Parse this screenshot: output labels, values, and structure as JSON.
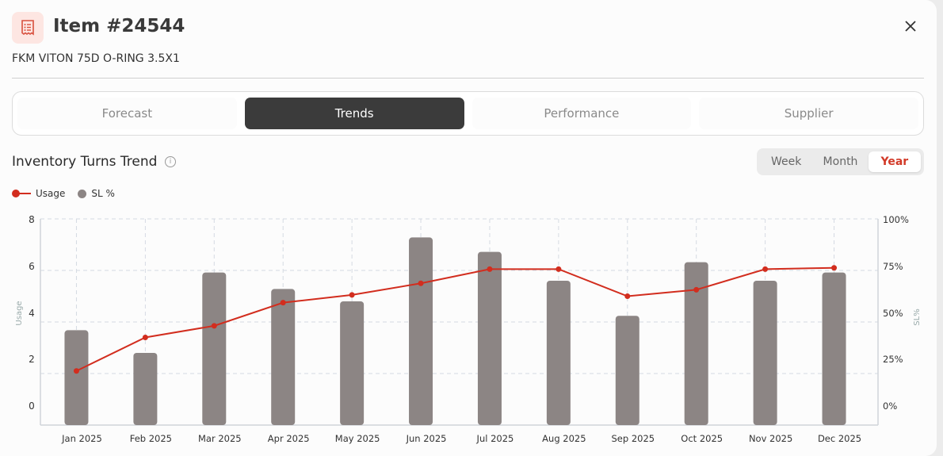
{
  "header": {
    "title": "Item #24544",
    "subtitle": "FKM VITON 75D O-RING 3.5X1"
  },
  "tabs": [
    {
      "label": "Forecast"
    },
    {
      "label": "Trends",
      "active": true
    },
    {
      "label": "Performance"
    },
    {
      "label": "Supplier"
    }
  ],
  "section": {
    "title": "Inventory Turns Trend",
    "info_icon": "i"
  },
  "range_toggle": [
    {
      "label": "Week"
    },
    {
      "label": "Month"
    },
    {
      "label": "Year",
      "active": true
    }
  ],
  "legend": [
    {
      "label": "Usage"
    },
    {
      "label": "SL %"
    }
  ],
  "colors": {
    "accent": "#d22d1e",
    "bar": "#8c8584",
    "active_tab": "#3b3b3b"
  },
  "chart_data": {
    "type": "bar+line",
    "categories": [
      "Jan 2025",
      "Feb 2025",
      "Mar 2025",
      "Apr 2025",
      "May 2025",
      "Jun 2025",
      "Jul 2025",
      "Aug 2025",
      "Sep 2025",
      "Oct 2025",
      "Nov 2025",
      "Dec 2025"
    ],
    "series": [
      {
        "name": "Usage",
        "type": "line",
        "axis": "left",
        "values": [
          2.1,
          3.4,
          3.85,
          4.75,
          5.05,
          5.5,
          6.05,
          6.05,
          5.0,
          5.25,
          6.05,
          6.1
        ]
      },
      {
        "name": "SL %",
        "type": "bar",
        "axis": "right",
        "values": [
          46,
          35,
          74,
          66,
          60,
          91,
          84,
          70,
          53,
          79,
          70,
          74
        ]
      }
    ],
    "ylabel": "Usage",
    "y2label": "SL%",
    "yticks": [
      "0",
      "2",
      "4",
      "6",
      "8"
    ],
    "y2ticks": [
      "0%",
      "25%",
      "50%",
      "75%",
      "100%"
    ],
    "ylim": [
      0,
      8
    ],
    "y2lim": [
      0,
      100
    ],
    "grid": true,
    "legend_position": "top-left"
  }
}
